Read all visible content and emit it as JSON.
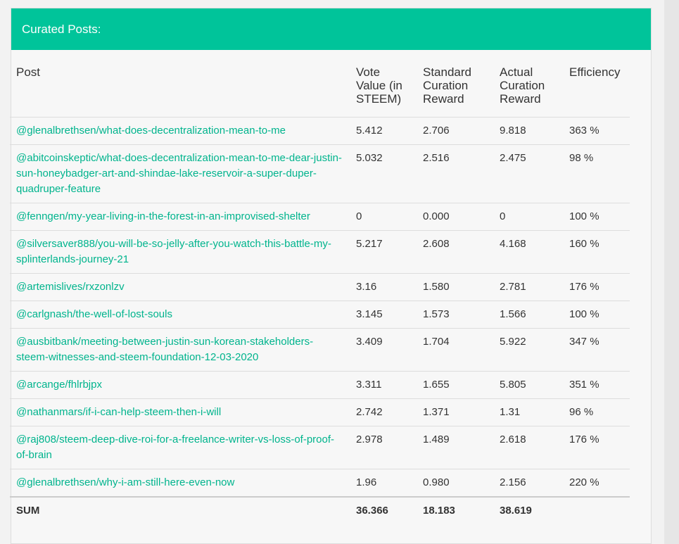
{
  "panel": {
    "title": "Curated Posts:"
  },
  "table": {
    "headers": {
      "post": "Post",
      "vote_value": "Vote Value (in STEEM)",
      "standard_reward": "Standard Curation Reward",
      "actual_reward": "Actual Curation Reward",
      "efficiency": "Efficiency"
    },
    "rows": [
      {
        "post": "@glenalbrethsen/what-does-decentralization-mean-to-me",
        "vote": "5.412",
        "standard": "2.706",
        "actual": "9.818",
        "efficiency": "363 %"
      },
      {
        "post": "@abitcoinskeptic/what-does-decentralization-mean-to-me-dear-justin-sun-honeybadger-art-and-shindae-lake-reservoir-a-super-duper-quadruper-feature",
        "vote": "5.032",
        "standard": "2.516",
        "actual": "2.475",
        "efficiency": "98 %"
      },
      {
        "post": "@fenngen/my-year-living-in-the-forest-in-an-improvised-shelter",
        "vote": "0",
        "standard": "0.000",
        "actual": "0",
        "efficiency": "100 %"
      },
      {
        "post": "@silversaver888/you-will-be-so-jelly-after-you-watch-this-battle-my-splinterlands-journey-21",
        "vote": "5.217",
        "standard": "2.608",
        "actual": "4.168",
        "efficiency": "160 %"
      },
      {
        "post": "@artemislives/rxzonlzv",
        "vote": "3.16",
        "standard": "1.580",
        "actual": "2.781",
        "efficiency": "176 %"
      },
      {
        "post": "@carlgnash/the-well-of-lost-souls",
        "vote": "3.145",
        "standard": "1.573",
        "actual": "1.566",
        "efficiency": "100 %"
      },
      {
        "post": "@ausbitbank/meeting-between-justin-sun-korean-stakeholders-steem-witnesses-and-steem-foundation-12-03-2020",
        "vote": "3.409",
        "standard": "1.704",
        "actual": "5.922",
        "efficiency": "347 %"
      },
      {
        "post": "@arcange/fhlrbjpx",
        "vote": "3.311",
        "standard": "1.655",
        "actual": "5.805",
        "efficiency": "351 %"
      },
      {
        "post": "@nathanmars/if-i-can-help-steem-then-i-will",
        "vote": "2.742",
        "standard": "1.371",
        "actual": "1.31",
        "efficiency": "96 %"
      },
      {
        "post": "@raj808/steem-deep-dive-roi-for-a-freelance-writer-vs-loss-of-proof-of-brain",
        "vote": "2.978",
        "standard": "1.489",
        "actual": "2.618",
        "efficiency": "176 %"
      },
      {
        "post": "@glenalbrethsen/why-i-am-still-here-even-now",
        "vote": "1.96",
        "standard": "0.980",
        "actual": "2.156",
        "efficiency": "220 %"
      }
    ],
    "sum": {
      "label": "SUM",
      "vote": "36.366",
      "standard": "18.183",
      "actual": "38.619",
      "efficiency": ""
    }
  },
  "colors": {
    "header_bg": "#00c49a",
    "link": "#00b48d"
  }
}
